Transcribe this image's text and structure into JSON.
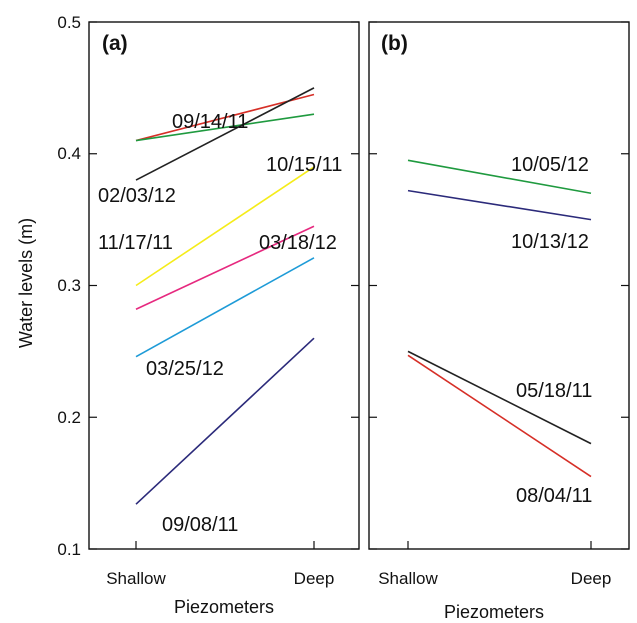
{
  "chart_data": {
    "type": "line",
    "ylabel": "Water levels (m)",
    "ylim": [
      0.1,
      0.5
    ],
    "yticks": [
      "0.1",
      "0.2",
      "0.3",
      "0.4",
      "0.5"
    ],
    "categories": [
      "Shallow",
      "Deep"
    ],
    "grid": false,
    "panels": [
      {
        "label": "(a)",
        "xlabel": "Piezometers",
        "series": [
          {
            "name": "09/14/11",
            "color": "#d62f27",
            "values": [
              0.41,
              0.445
            ]
          },
          {
            "name": "",
            "color": "#1f9a3f",
            "values": [
              0.41,
              0.43
            ]
          },
          {
            "name": "02/03/12",
            "color": "#222222",
            "values": [
              0.38,
              0.45
            ]
          },
          {
            "name": "10/15/11",
            "color": "#f5ec1a",
            "values": [
              0.3,
              0.39
            ]
          },
          {
            "name": "03/18/12",
            "color": "#e6297f",
            "values": [
              0.282,
              0.345
            ]
          },
          {
            "name": "03/25/12",
            "color": "#1e9bd7",
            "values": [
              0.246,
              0.321
            ]
          },
          {
            "name": "09/08/11",
            "color": "#2b2a7a",
            "values": [
              0.134,
              0.26
            ]
          }
        ],
        "annotations": [
          "11/17/11"
        ]
      },
      {
        "label": "(b)",
        "xlabel": "Piezometers",
        "series": [
          {
            "name": "10/05/12",
            "color": "#1f9a3f",
            "values": [
              0.395,
              0.37
            ]
          },
          {
            "name": "10/13/12",
            "color": "#2b2a7a",
            "values": [
              0.372,
              0.35
            ]
          },
          {
            "name": "05/18/11",
            "color": "#222222",
            "values": [
              0.25,
              0.18
            ]
          },
          {
            "name": "08/04/11",
            "color": "#d62f27",
            "values": [
              0.247,
              0.155
            ]
          }
        ]
      }
    ]
  }
}
